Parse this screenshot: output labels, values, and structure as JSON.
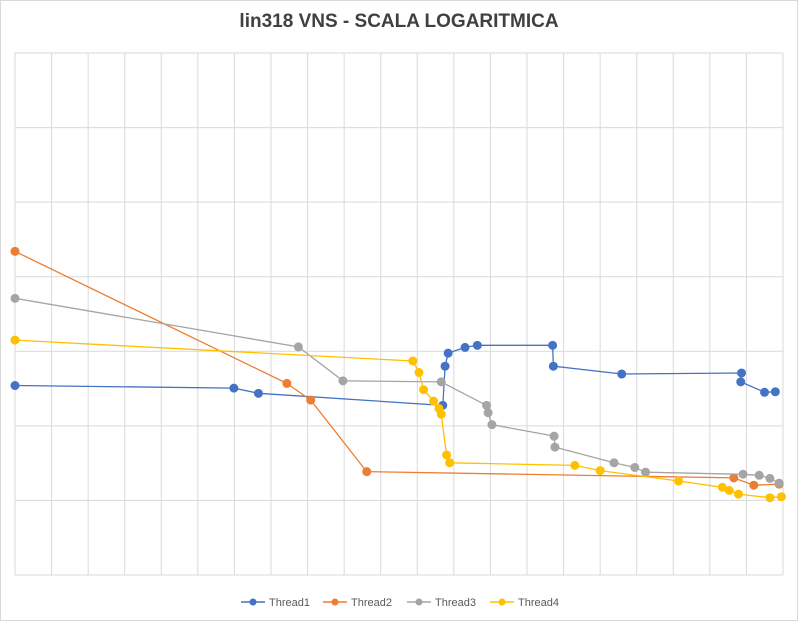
{
  "chart_data": {
    "type": "line",
    "title": "lin318 VNS - SCALA LOGARITMICA",
    "xlabel": "",
    "ylabel": "",
    "x_log_scale": true,
    "y_log_scale": true,
    "grid": true,
    "legend_position": "bottom",
    "series": [
      {
        "name": "Thread1",
        "color": "#4472C4",
        "points": [
          [
            0.0,
            0.363
          ],
          [
            0.285,
            0.358
          ],
          [
            0.317,
            0.348
          ],
          [
            0.557,
            0.325
          ],
          [
            0.56,
            0.4
          ],
          [
            0.564,
            0.425
          ],
          [
            0.586,
            0.436
          ],
          [
            0.602,
            0.44
          ],
          [
            0.7,
            0.44
          ],
          [
            0.701,
            0.4
          ],
          [
            0.79,
            0.385
          ],
          [
            0.946,
            0.387
          ],
          [
            0.945,
            0.37
          ],
          [
            0.976,
            0.35
          ],
          [
            0.99,
            0.351
          ]
        ]
      },
      {
        "name": "Thread2",
        "color": "#ED7D31",
        "points": [
          [
            0.0,
            0.62
          ],
          [
            0.354,
            0.367
          ],
          [
            0.385,
            0.335
          ],
          [
            0.458,
            0.198
          ],
          [
            0.936,
            0.186
          ],
          [
            0.962,
            0.172
          ],
          [
            0.995,
            0.174
          ]
        ]
      },
      {
        "name": "Thread3",
        "color": "#A5A5A5",
        "points": [
          [
            0.0,
            0.53
          ],
          [
            0.369,
            0.437
          ],
          [
            0.427,
            0.372
          ],
          [
            0.555,
            0.37
          ],
          [
            0.614,
            0.325
          ],
          [
            0.616,
            0.311
          ],
          [
            0.621,
            0.288
          ],
          [
            0.702,
            0.266
          ],
          [
            0.703,
            0.245
          ],
          [
            0.78,
            0.215
          ],
          [
            0.807,
            0.206
          ],
          [
            0.821,
            0.197
          ],
          [
            0.948,
            0.193
          ],
          [
            0.969,
            0.191
          ],
          [
            0.983,
            0.185
          ],
          [
            0.995,
            0.176
          ]
        ]
      },
      {
        "name": "Thread4",
        "color": "#FFC000",
        "points": [
          [
            0.0,
            0.45
          ],
          [
            0.518,
            0.41
          ],
          [
            0.526,
            0.388
          ],
          [
            0.532,
            0.355
          ],
          [
            0.545,
            0.333
          ],
          [
            0.552,
            0.319
          ],
          [
            0.555,
            0.308
          ],
          [
            0.562,
            0.23
          ],
          [
            0.566,
            0.215
          ],
          [
            0.729,
            0.21
          ],
          [
            0.762,
            0.2
          ],
          [
            0.864,
            0.18
          ],
          [
            0.921,
            0.168
          ],
          [
            0.93,
            0.162
          ],
          [
            0.942,
            0.155
          ],
          [
            0.983,
            0.148
          ],
          [
            0.998,
            0.15
          ]
        ]
      }
    ]
  }
}
